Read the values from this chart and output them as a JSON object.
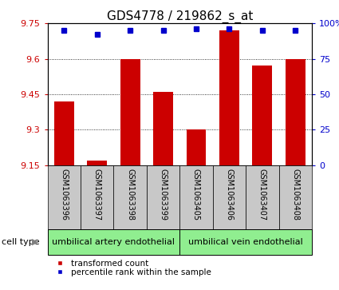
{
  "title": "GDS4778 / 219862_s_at",
  "samples": [
    "GSM1063396",
    "GSM1063397",
    "GSM1063398",
    "GSM1063399",
    "GSM1063405",
    "GSM1063406",
    "GSM1063407",
    "GSM1063408"
  ],
  "bar_values": [
    9.42,
    9.17,
    9.6,
    9.46,
    9.3,
    9.72,
    9.57,
    9.6
  ],
  "percentile_values": [
    95,
    92,
    95,
    95,
    96,
    96,
    95,
    95
  ],
  "y_min": 9.15,
  "y_max": 9.75,
  "y_ticks": [
    9.15,
    9.3,
    9.45,
    9.6,
    9.75
  ],
  "right_ticks": [
    0,
    25,
    50,
    75,
    100
  ],
  "bar_color": "#cc0000",
  "dot_color": "#0000cc",
  "group1_label": "umbilical artery endothelial",
  "group2_label": "umbilical vein endothelial",
  "group_color": "#90ee90",
  "cell_type_label": "cell type",
  "legend_bar_label": "transformed count",
  "legend_dot_label": "percentile rank within the sample",
  "tick_label_bg": "#c8c8c8",
  "title_fontsize": 11,
  "tick_fontsize": 8,
  "label_fontsize": 7,
  "celltype_fontsize": 8,
  "legend_fontsize": 7.5
}
